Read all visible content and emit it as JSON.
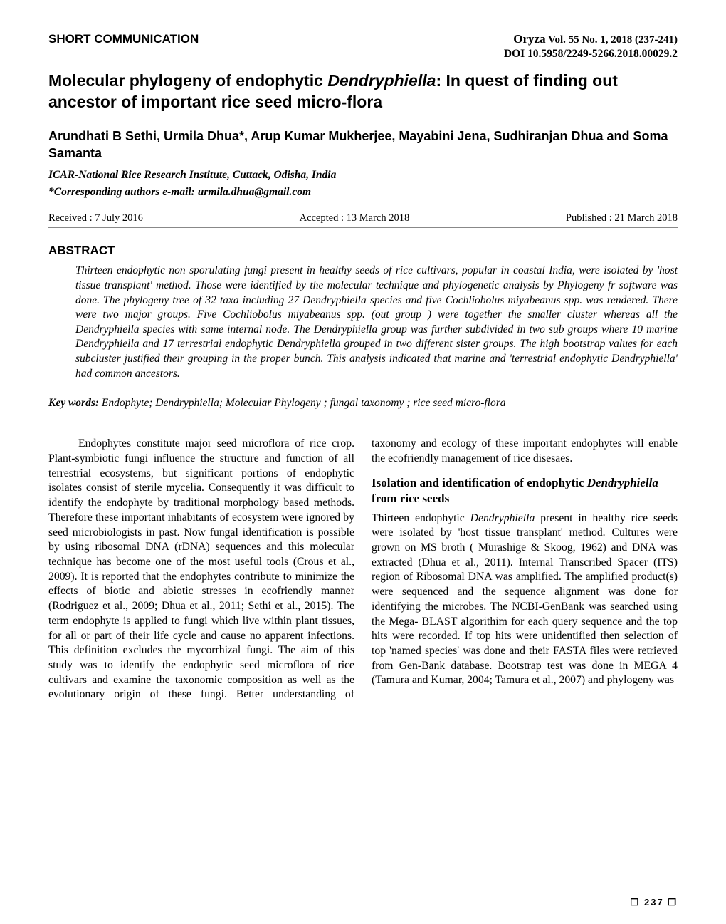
{
  "header": {
    "short_communication": "SHORT COMMUNICATION",
    "journal_name": "Oryza",
    "journal_issue": " Vol. 55 No. 1, 2018 (237-241)",
    "doi": "DOI 10.5958/2249-5266.2018.00029.2"
  },
  "title_part1": "Molecular phylogeny of  endophytic ",
  "title_italic": "Dendryphiella",
  "title_part2": ": In quest of finding out ancestor of important rice seed micro-flora",
  "authors": "Arundhati B Sethi, Urmila Dhua*, Arup Kumar Mukherjee, Mayabini Jena, Sudhiranjan Dhua and Soma Samanta",
  "affiliation": "ICAR-National Rice Research Institute, Cuttack, Odisha, India",
  "corresponding": "*Corresponding authors e-mail: urmila.dhua@gmail.com",
  "dates": {
    "received": "Received : 7 July 2016",
    "accepted": "Accepted : 13 March 2018",
    "published": "Published : 21 March 2018"
  },
  "abstract": {
    "heading": "ABSTRACT",
    "body": "Thirteen endophytic non sporulating fungi present in healthy seeds of rice cultivars, popular in coastal India, were isolated by 'host tissue transplant' method. Those were   identified by the molecular technique and phylogenetic analysis by Phylogeny fr software was done. The phylogeny tree of 32 taxa including 27 Dendryphiella species and five Cochliobolus miyabeanus spp. was rendered. There were two major groups. Five Cochliobolus miyabeanus  spp. (out group ) were  together the smaller cluster whereas all the Dendryphiella species with same internal node. The Dendryphiella  group was further subdivided in two sub groups where 10 marine Dendryphiella and 17 terrestrial endophytic Dendryphiella grouped in two different sister groups. The high bootstrap values for each subcluster justified their grouping in the proper bunch. This analysis indicated that marine and 'terrestrial endophytic Dendryphiella' had common ancestors."
  },
  "keywords": {
    "label": "Key words:",
    "body": " Endophyte;  Dendryphiella; Molecular Phylogeny ; fungal taxonomy ; rice seed micro-flora"
  },
  "body": {
    "para1": "Endophytes constitute major seed microflora of rice crop. Plant-symbiotic fungi influence the structure and function of all terrestrial ecosystems, but significant portions of endophytic isolates consist of sterile mycelia. Consequently it was difficult to identify the endophyte by traditional morphology based methods. Therefore these important inhabitants of ecosystem were ignored by seed microbiologists in past. Now fungal identification is possible by using ribosomal DNA (rDNA) sequences and this molecular technique has become one of the most useful tools (Crous et al., 2009). It is reported that the endophytes contribute to minimize the effects of biotic and abiotic stresses in ecofriendly manner (Rodriguez et al., 2009; Dhua et al., 2011; Sethi et al., 2015). The term endophyte is applied to fungi which live within plant tissues, for all or part of their life cycle and cause no apparent infections. This definition excludes the mycorrhizal fungi. The aim of this study was to identify the endophytic seed microflora of rice cultivars  and examine the taxonomic composition as well as the evolutionary origin of these fungi. Better understanding of taxonomy and ecology of these important endophytes will enable the ecofriendly management of rice disesaes.",
    "subheading_part1": "Isolation and identification of endophytic ",
    "subheading_italic": "Dendryphiella",
    "subheading_part2": " from rice seeds",
    "para2_a": "Thirteen endophytic ",
    "para2_it": "Dendryphiella",
    "para2_b": " present in healthy rice seeds were isolated by 'host tissue transplant' method. Cultures were grown on MS broth ( Murashige & Skoog, 1962) and DNA was extracted (Dhua et al., 2011). Internal Transcribed Spacer (ITS) region of Ribosomal DNA was amplified. The amplified product(s) were sequenced and the sequence alignment was done for identifying the microbes. The NCBI-GenBank was searched using the Mega- BLAST algorithim for each query sequence and the top hits were recorded. If top hits were unidentified then selection of top 'named species' was done and their FASTA files were retrieved from Gen-Bank database. Bootstrap test was done in MEGA 4 (Tamura and Kumar, 2004; Tamura et al., 2007) and phylogeny was"
  },
  "page_number": "237"
}
